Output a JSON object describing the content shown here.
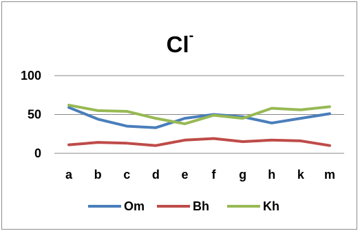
{
  "chart_data": {
    "type": "line",
    "title": "Cl",
    "title_superscript": "-",
    "categories": [
      "a",
      "b",
      "c",
      "d",
      "e",
      "f",
      "g",
      "h",
      "k",
      "m"
    ],
    "ylim": [
      0,
      100
    ],
    "yticks": [
      0,
      50,
      100
    ],
    "grid": "horizontal",
    "legend_placement": "bottom",
    "series": [
      {
        "name": "Om",
        "color": "#4a7ebb",
        "values": [
          59,
          44,
          35,
          33,
          45,
          50,
          47,
          39,
          45,
          51
        ]
      },
      {
        "name": "Bh",
        "color": "#be4b48",
        "values": [
          11,
          14,
          13,
          10,
          17,
          19,
          15,
          17,
          16,
          10
        ]
      },
      {
        "name": "Kh",
        "color": "#98b954",
        "values": [
          62,
          55,
          54,
          45,
          38,
          49,
          45,
          58,
          56,
          60
        ]
      }
    ]
  }
}
